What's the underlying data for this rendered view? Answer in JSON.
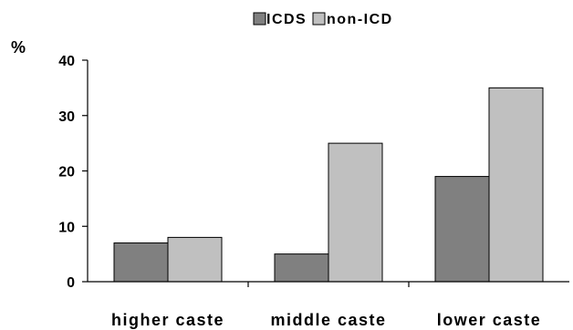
{
  "chart_data": {
    "type": "bar",
    "title": "",
    "xlabel": "",
    "ylabel": "%",
    "ylim": [
      0,
      40
    ],
    "yticks": [
      0,
      10,
      20,
      30,
      40
    ],
    "grid": false,
    "legend_position": "top",
    "categories": [
      "higher caste",
      "middle caste",
      "lower caste"
    ],
    "series": [
      {
        "name": "ICDS",
        "values": [
          7,
          5,
          19
        ],
        "color": "#808080"
      },
      {
        "name": "non-ICD",
        "values": [
          8,
          25,
          35
        ],
        "color": "#c0c0c0"
      }
    ]
  }
}
